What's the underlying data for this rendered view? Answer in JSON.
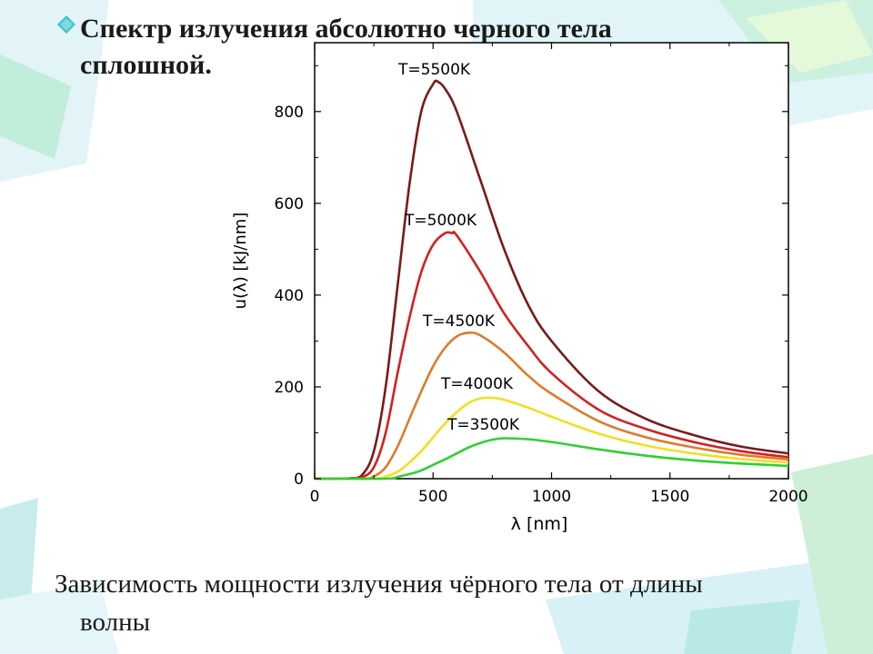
{
  "slide": {
    "title_line1": "Спектр излучения абсолютно черного тела",
    "title_line2": "сплошной.",
    "caption_line1": "Зависимость мощности излучения чёрного тела от длины",
    "caption_line2": "волны"
  },
  "colors": {
    "T5500": "#7a1a1a",
    "T5000": "#d42020",
    "T4500": "#e07a2a",
    "T4000": "#f0e020",
    "T3500": "#30d030",
    "bullet": "#3fc1c9"
  },
  "chart_data": {
    "type": "line",
    "xlabel": "λ [nm]",
    "ylabel": "u(λ) [kJ/nm]",
    "xlim": [
      0,
      2000
    ],
    "ylim": [
      0,
      950
    ],
    "x_ticks": [
      "0",
      "500",
      "1000",
      "1500",
      "2000"
    ],
    "y_ticks": [
      "0",
      "200",
      "400",
      "600",
      "800"
    ],
    "x_tick_values": [
      0,
      500,
      1000,
      1500,
      2000
    ],
    "y_tick_values": [
      0,
      200,
      400,
      600,
      800
    ],
    "series": [
      {
        "name": "T=5500K",
        "color": "#7a1a1a",
        "x": [
          0,
          100,
          150,
          200,
          250,
          300,
          350,
          400,
          450,
          500,
          520,
          550,
          600,
          700,
          800,
          900,
          1000,
          1200,
          1400,
          1600,
          1800,
          2000
        ],
        "y": [
          0,
          0,
          1,
          8,
          60,
          200,
          420,
          640,
          800,
          860,
          865,
          850,
          800,
          650,
          500,
          380,
          300,
          190,
          130,
          95,
          70,
          55
        ]
      },
      {
        "name": "T=5000K",
        "color": "#d42020",
        "x": [
          0,
          150,
          200,
          250,
          300,
          350,
          400,
          450,
          500,
          550,
          580,
          600,
          700,
          800,
          900,
          1000,
          1200,
          1400,
          1600,
          1800,
          2000
        ],
        "y": [
          0,
          0,
          3,
          25,
          100,
          230,
          350,
          450,
          510,
          535,
          535,
          530,
          450,
          360,
          290,
          230,
          150,
          108,
          80,
          60,
          47
        ]
      },
      {
        "name": "T=4500K",
        "color": "#e07a2a",
        "x": [
          0,
          200,
          250,
          300,
          350,
          400,
          450,
          500,
          550,
          600,
          650,
          700,
          800,
          900,
          1000,
          1200,
          1400,
          1600,
          1800,
          2000
        ],
        "y": [
          0,
          0,
          5,
          25,
          70,
          130,
          190,
          245,
          285,
          310,
          318,
          312,
          275,
          225,
          185,
          125,
          90,
          68,
          52,
          42
        ]
      },
      {
        "name": "T=4000K",
        "color": "#f0e020",
        "x": [
          0,
          250,
          300,
          350,
          400,
          450,
          500,
          550,
          600,
          650,
          700,
          750,
          800,
          900,
          1000,
          1200,
          1400,
          1600,
          1800,
          2000
        ],
        "y": [
          0,
          0,
          5,
          15,
          35,
          60,
          90,
          120,
          145,
          165,
          175,
          176,
          172,
          155,
          135,
          98,
          72,
          55,
          43,
          35
        ]
      },
      {
        "name": "T=3500K",
        "color": "#30d030",
        "x": [
          0,
          300,
          350,
          400,
          450,
          500,
          550,
          600,
          650,
          700,
          750,
          800,
          900,
          1000,
          1200,
          1400,
          1600,
          1800,
          2000
        ],
        "y": [
          0,
          0,
          4,
          10,
          18,
          30,
          42,
          55,
          68,
          78,
          85,
          88,
          86,
          80,
          64,
          50,
          40,
          33,
          28
        ]
      }
    ],
    "annotations": [
      "T=5500K",
      "T=5000K",
      "T=4500K",
      "T=4000K",
      "T=3500K"
    ]
  }
}
